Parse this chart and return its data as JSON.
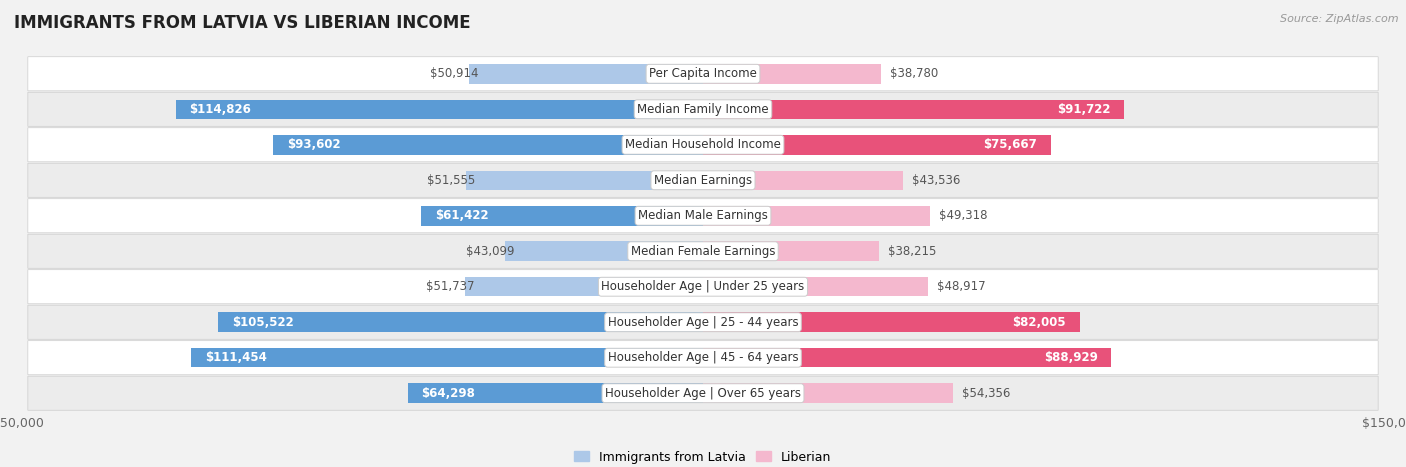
{
  "title": "IMMIGRANTS FROM LATVIA VS LIBERIAN INCOME",
  "source": "Source: ZipAtlas.com",
  "categories": [
    "Per Capita Income",
    "Median Family Income",
    "Median Household Income",
    "Median Earnings",
    "Median Male Earnings",
    "Median Female Earnings",
    "Householder Age | Under 25 years",
    "Householder Age | 25 - 44 years",
    "Householder Age | 45 - 64 years",
    "Householder Age | Over 65 years"
  ],
  "latvia_values": [
    50914,
    114826,
    93602,
    51555,
    61422,
    43099,
    51737,
    105522,
    111454,
    64298
  ],
  "liberian_values": [
    38780,
    91722,
    75667,
    43536,
    49318,
    38215,
    48917,
    82005,
    88929,
    54356
  ],
  "latvia_color_light": "#adc8e8",
  "latvia_color_dark": "#5b9bd5",
  "liberian_color_light": "#f4b8ce",
  "liberian_color_dark": "#e8527a",
  "max_value": 150000,
  "background_color": "#f2f2f2",
  "row_color_even": "#ffffff",
  "row_color_odd": "#ececec",
  "bar_height": 0.55,
  "label_fontsize": 8.5,
  "title_fontsize": 12,
  "source_fontsize": 8,
  "legend_fontsize": 9,
  "axis_label_fontsize": 9,
  "white_label_threshold": 60000,
  "label_color_dark": "#555555",
  "label_color_white": "#ffffff"
}
